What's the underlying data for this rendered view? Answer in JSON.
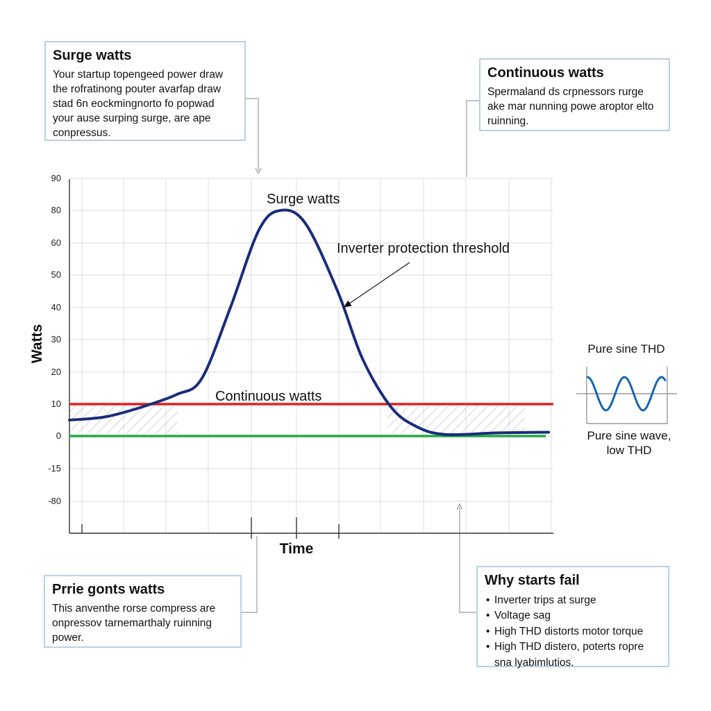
{
  "callouts": {
    "surge": {
      "title": "Surge watts",
      "body": "Your startup topengeed power draw the rofratinong pouter avarfap draw stad 6n eockmingnorto fo popwad your ause surping surge, are ape conpressus."
    },
    "continuous": {
      "title": "Continuous watts",
      "body": "Spermaland ds crpnessors rurge ake mar nunning powe aroptor elto ruinning."
    },
    "running": {
      "title": "Prrie gonts watts",
      "body": "This anventhe rorse compress are onpressov tarnemarthaly ruinning power."
    },
    "why_fail": {
      "title": "Why starts fail",
      "items": [
        "Inverter trips at surge",
        "Voltage sag",
        "High THD distorts motor torque",
        "High THD distero, poterts ropre sna lyabimlutios."
      ]
    }
  },
  "chart_data": {
    "type": "line",
    "xlabel": "Time",
    "ylabel": "Watts",
    "y_tick_labels": [
      "90",
      "80",
      "60",
      "50",
      "40",
      "30",
      "20",
      "10",
      "0",
      "-15",
      "-80"
    ],
    "grid": true,
    "series": [
      {
        "color": "#1a2d7a",
        "points": [
          [
            0.0,
            5
          ],
          [
            1.0,
            6
          ],
          [
            2.0,
            9
          ],
          [
            3.0,
            13
          ],
          [
            3.7,
            18
          ],
          [
            4.5,
            40
          ],
          [
            5.3,
            68
          ],
          [
            5.9,
            80
          ],
          [
            6.6,
            72
          ],
          [
            7.5,
            45
          ],
          [
            8.2,
            24
          ],
          [
            9.0,
            9
          ],
          [
            9.7,
            3
          ],
          [
            10.5,
            0.5
          ],
          [
            12.0,
            1.0
          ],
          [
            13.4,
            1.2
          ]
        ]
      }
    ],
    "reference_lines": [
      {
        "label": "Continuous watts",
        "y": 10,
        "color": "#e02020"
      },
      {
        "label": "",
        "y": 0,
        "color": "#22aa44"
      }
    ],
    "annotations": {
      "peak_label": "Surge watts",
      "threshold_label": "Inverter protection threshold"
    },
    "inset": {
      "title": "Pure sine THD",
      "caption_line1": "Pure sine wave,",
      "caption_line2": "low THD",
      "wave_color": "#1565b0"
    }
  }
}
